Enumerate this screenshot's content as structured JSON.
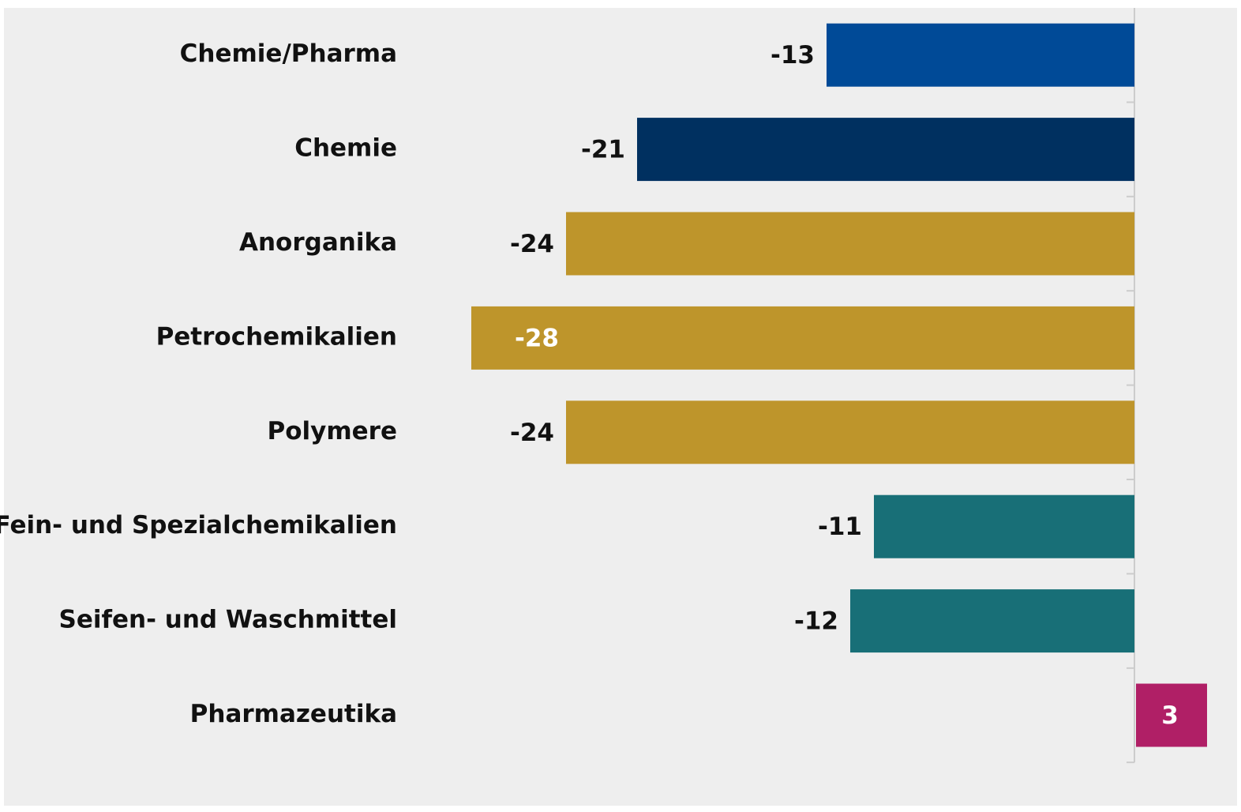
{
  "chart_data": {
    "type": "bar",
    "orientation": "horizontal",
    "categories": [
      "Chemie/Pharma",
      "Chemie",
      "Anorganika",
      "Petrochemikalien",
      "Polymere",
      "Fein- und Spezialchemikalien",
      "Seifen- und Waschmittel",
      "Pharmazeutika"
    ],
    "values": [
      -13,
      -21,
      -24,
      -28,
      -24,
      -11,
      -12,
      3
    ],
    "colors": [
      "#004a97",
      "#003060",
      "#be952b",
      "#be952b",
      "#be952b",
      "#186f77",
      "#186f77",
      "#b01f66"
    ],
    "xlim": [
      -30,
      4
    ]
  }
}
